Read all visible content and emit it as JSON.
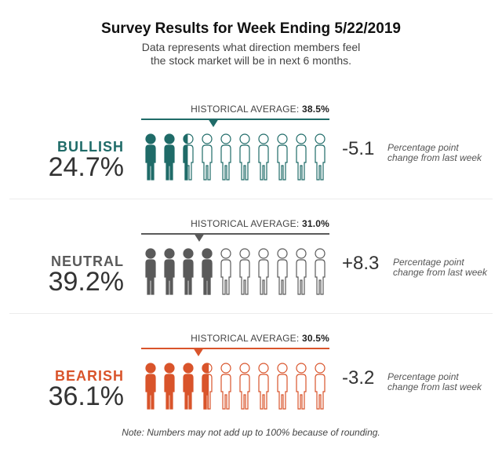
{
  "title": "Survey Results for Week Ending 5/22/2019",
  "subtitle": "Data represents what direction members feel the stock market will be in next 6 months.",
  "hist_prefix": "HISTORICAL AVERAGE:",
  "note": "Note: Numbers may not add up to 100% because of rounding.",
  "chart_data": {
    "type": "pictogram",
    "icons_per_row": 10,
    "categories": [
      {
        "name": "BULLISH",
        "value": 24.7,
        "value_label": "24.7%",
        "historical_average": 38.5,
        "historical_average_label": "38.5%",
        "change": "-5.1",
        "change_note": "Percentage point change from last week",
        "color": "#1f6b68"
      },
      {
        "name": "NEUTRAL",
        "value": 39.2,
        "value_label": "39.2%",
        "historical_average": 31.0,
        "historical_average_label": "31.0%",
        "change": "+8.3",
        "change_note": "Percentage point change from last week",
        "color": "#5a5a5a"
      },
      {
        "name": "BEARISH",
        "value": 36.1,
        "value_label": "36.1%",
        "historical_average": 30.5,
        "historical_average_label": "30.5%",
        "change": "-3.2",
        "change_note": "Percentage point change from last week",
        "color": "#d9542b"
      }
    ]
  }
}
